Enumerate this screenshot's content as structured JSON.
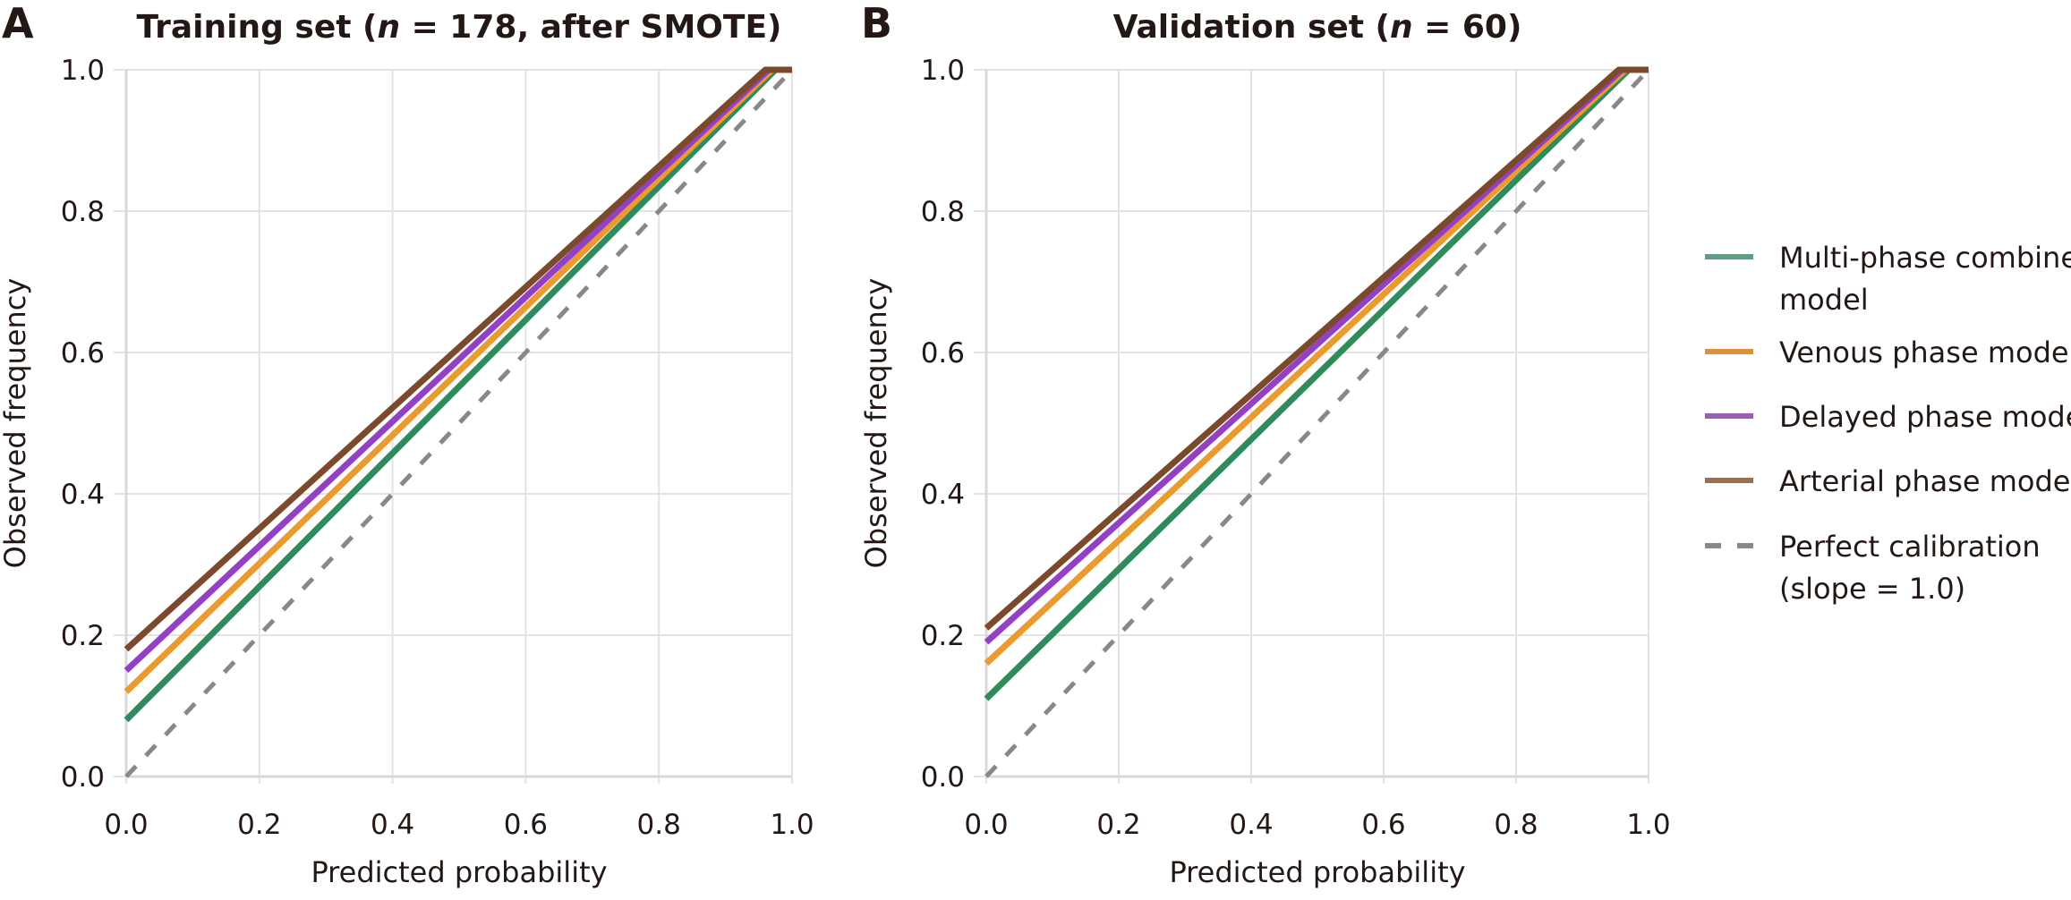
{
  "chart_data": [
    {
      "type": "line",
      "panel_label": "A",
      "title_parts": [
        "Training set (",
        "n",
        " = 178, after SMOTE)"
      ],
      "xlabel": "Predicted probability",
      "ylabel": "Observed frequency",
      "xlim": [
        0,
        1
      ],
      "ylim": [
        0,
        1
      ],
      "xticks": [
        "0.0",
        "0.2",
        "0.4",
        "0.6",
        "0.8",
        "1.0"
      ],
      "yticks": [
        "0.0",
        "0.2",
        "0.4",
        "0.6",
        "0.8",
        "1.0"
      ],
      "grid": true,
      "series": [
        {
          "name": "Arterial phase model",
          "color": "#7b4a2c",
          "intercept": 0.18,
          "x_reach_one": 0.96
        },
        {
          "name": "Delayed phase model",
          "color": "#9440c4",
          "intercept": 0.15,
          "x_reach_one": 0.965
        },
        {
          "name": "Venous phase model",
          "color": "#eb9a2e",
          "intercept": 0.12,
          "x_reach_one": 0.97
        },
        {
          "name": "Multi-phase combined model",
          "color": "#2f8a5c",
          "intercept": 0.08,
          "x_reach_one": 0.975
        },
        {
          "name": "Perfect calibration (slope = 1.0)",
          "color": "#888888",
          "intercept": 0.0,
          "x_reach_one": 1.0,
          "dashed": true
        }
      ]
    },
    {
      "type": "line",
      "panel_label": "B",
      "title_parts": [
        "Validation set (",
        "n",
        " = 60)"
      ],
      "xlabel": "Predicted probability",
      "ylabel": "Observed frequency",
      "xlim": [
        0,
        1
      ],
      "ylim": [
        0,
        1
      ],
      "xticks": [
        "0.0",
        "0.2",
        "0.4",
        "0.6",
        "0.8",
        "1.0"
      ],
      "yticks": [
        "0.0",
        "0.2",
        "0.4",
        "0.6",
        "0.8",
        "1.0"
      ],
      "grid": true,
      "series": [
        {
          "name": "Arterial phase model",
          "color": "#7b4a2c",
          "intercept": 0.21,
          "x_reach_one": 0.955
        },
        {
          "name": "Delayed phase model",
          "color": "#9440c4",
          "intercept": 0.19,
          "x_reach_one": 0.96
        },
        {
          "name": "Venous phase model",
          "color": "#eb9a2e",
          "intercept": 0.16,
          "x_reach_one": 0.965
        },
        {
          "name": "Multi-phase combined model",
          "color": "#2f8a5c",
          "intercept": 0.11,
          "x_reach_one": 0.97
        },
        {
          "name": "Perfect calibration (slope = 1.0)",
          "color": "#888888",
          "intercept": 0.0,
          "x_reach_one": 1.0,
          "dashed": true
        }
      ]
    }
  ],
  "legend": {
    "placement": "right",
    "items": [
      {
        "lines": [
          "Multi-phase combined",
          "model"
        ],
        "color": "#5f9e80",
        "dashed": false
      },
      {
        "lines": [
          "Venous phase model"
        ],
        "color": "#dc913a",
        "dashed": false
      },
      {
        "lines": [
          "Delayed phase model"
        ],
        "color": "#9a5fb3",
        "dashed": false
      },
      {
        "lines": [
          "Arterial phase model"
        ],
        "color": "#9a7052",
        "dashed": false
      },
      {
        "lines": [
          "Perfect calibration",
          "(slope = 1.0)"
        ],
        "color": "#888888",
        "dashed": true
      }
    ]
  }
}
